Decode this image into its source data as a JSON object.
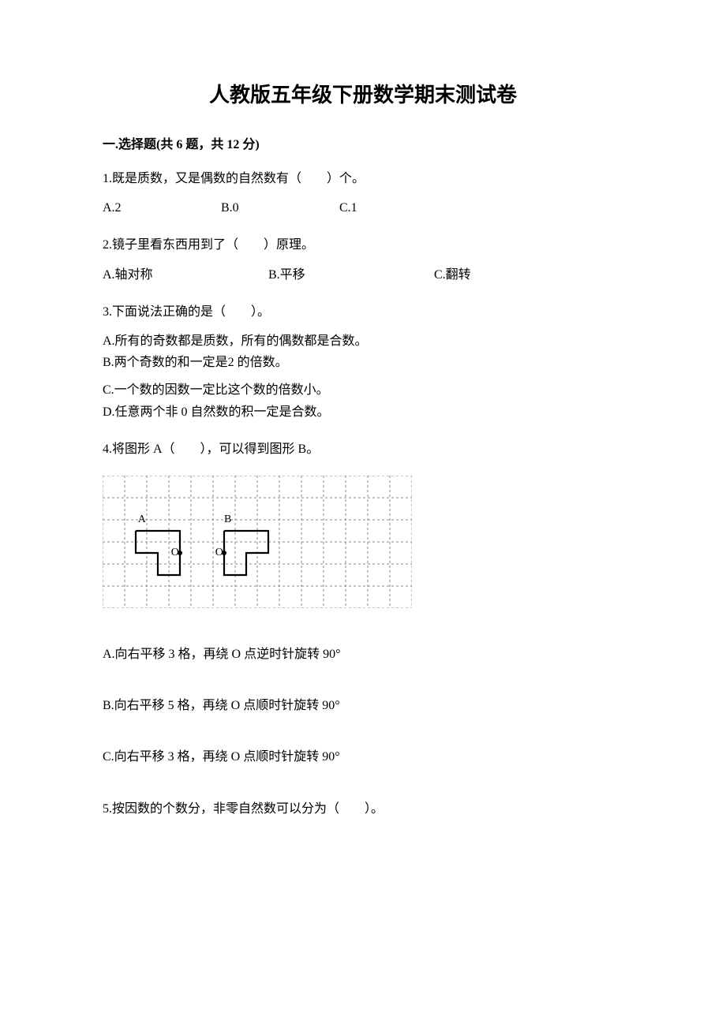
{
  "document": {
    "title": "人教版五年级下册数学期末测试卷",
    "section1": {
      "heading": "一.选择题(共 6 题，共 12 分)"
    },
    "q1": {
      "text": "1.既是质数，又是偶数的自然数有（　　）个。",
      "optA": "A.2",
      "optB": "B.0",
      "optC": "C.1"
    },
    "q2": {
      "text": "2.镜子里看东西用到了（　　）原理。",
      "optA": "A.轴对称",
      "optB": "B.平移",
      "optC": "C.翻转"
    },
    "q3": {
      "text": "3.下面说法正确的是（　　）。",
      "optA": "A.所有的奇数都是质数，所有的偶数都是合数。",
      "optB": "B.两个奇数的和一定是2 的倍数。",
      "optC": "C.一个数的因数一定比这个数的倍数小。",
      "optD": "D.任意两个非 0 自然数的积一定是合数。"
    },
    "q4": {
      "text": "4.将图形 A（　　），可以得到图形 B。",
      "optA": "A.向右平移 3 格，再绕 O 点逆时针旋转 90°",
      "optB": "B.向右平移 5 格，再绕 O 点顺时针旋转 90°",
      "optC": "C.向右平移 3 格，再绕 O 点顺时针旋转 90°",
      "figure": {
        "type": "grid-shapes",
        "grid_cols": 14,
        "grid_rows": 6,
        "cell_size": 28,
        "grid_style": "dashed",
        "grid_color": "#888888",
        "background": "#ffffff",
        "labels": [
          {
            "text": "A",
            "col": 1.6,
            "row": 2.1
          },
          {
            "text": "B",
            "col": 5.5,
            "row": 2.1
          },
          {
            "text": "O",
            "col": 3.1,
            "row": 3.6
          },
          {
            "text": "O'",
            "col": 5.1,
            "row": 3.6
          }
        ],
        "dots": [
          {
            "col": 3.5,
            "row": 3.5
          },
          {
            "col": 5.5,
            "row": 3.5
          }
        ],
        "shapes": [
          {
            "name": "shape-A",
            "stroke": "#000000",
            "stroke_width": 2.2,
            "fill": "none",
            "path_cells": [
              [
                1.5,
                2.5
              ],
              [
                3.5,
                2.5
              ],
              [
                3.5,
                4.5
              ],
              [
                2.5,
                4.5
              ],
              [
                2.5,
                3.5
              ],
              [
                1.5,
                3.5
              ],
              [
                1.5,
                2.5
              ]
            ]
          },
          {
            "name": "shape-B",
            "stroke": "#000000",
            "stroke_width": 2.2,
            "fill": "none",
            "path_cells": [
              [
                5.5,
                2.5
              ],
              [
                7.5,
                2.5
              ],
              [
                7.5,
                3.5
              ],
              [
                6.5,
                3.5
              ],
              [
                6.5,
                4.5
              ],
              [
                5.5,
                4.5
              ],
              [
                5.5,
                2.5
              ]
            ]
          }
        ],
        "label_font_size": 14
      }
    },
    "q5": {
      "text": "5.按因数的个数分，非零自然数可以分为（　　）。"
    }
  }
}
